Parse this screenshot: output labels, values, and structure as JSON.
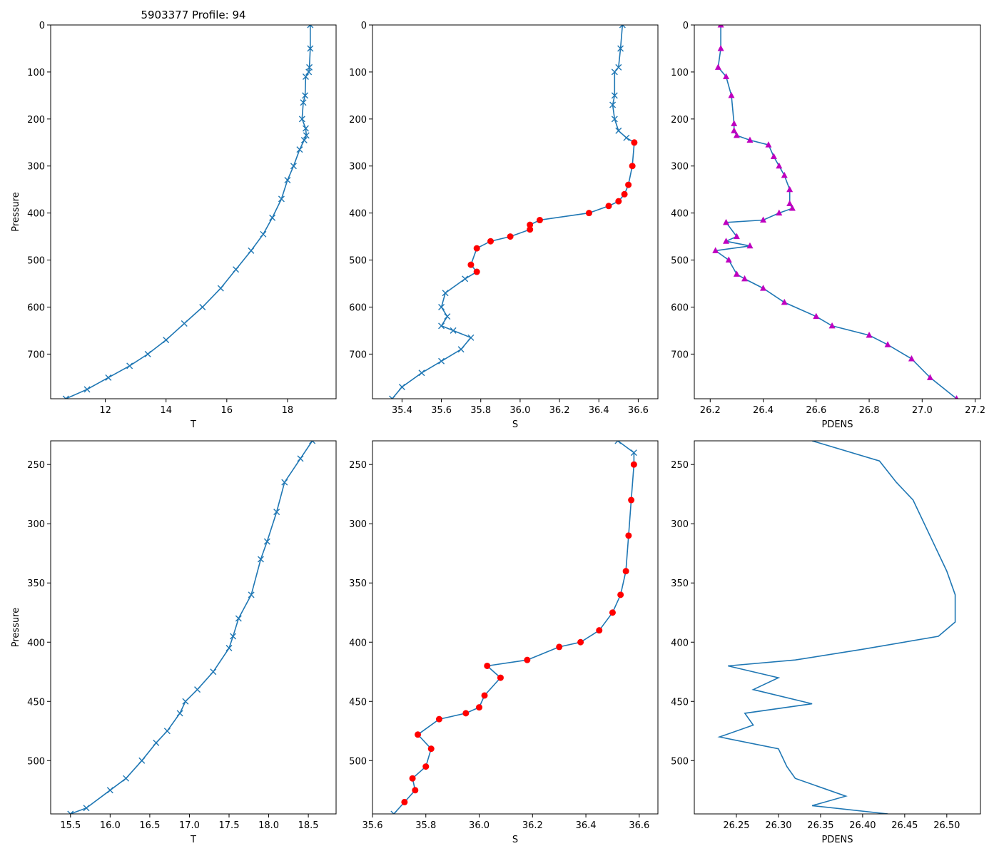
{
  "figure": {
    "title": "5903377 Profile: 94",
    "colors": {
      "line": "#1f77b4",
      "highlight": "#ff0000",
      "density_marker": "#bf00bf",
      "axis": "#000000"
    }
  },
  "chart_data": [
    {
      "type": "line",
      "panel": "top-left",
      "title": "5903377 Profile: 94",
      "xlabel": "T",
      "ylabel": "Pressure",
      "xlim": [
        10.2,
        19.6
      ],
      "ylim": [
        795,
        0
      ],
      "xticks": [
        12,
        14,
        16,
        18
      ],
      "yticks": [
        0,
        100,
        200,
        300,
        400,
        500,
        600,
        700
      ],
      "x": [
        18.75,
        18.75,
        18.72,
        18.7,
        18.6,
        18.58,
        18.52,
        18.48,
        18.6,
        18.62,
        18.55,
        18.4,
        18.2,
        18.0,
        17.8,
        17.5,
        17.2,
        16.8,
        16.3,
        15.8,
        15.2,
        14.6,
        14.0,
        13.4,
        12.8,
        12.1,
        11.4,
        10.7
      ],
      "y": [
        0,
        50,
        90,
        100,
        110,
        150,
        165,
        200,
        220,
        235,
        245,
        265,
        300,
        330,
        370,
        410,
        445,
        480,
        520,
        560,
        600,
        635,
        670,
        700,
        725,
        750,
        775,
        795
      ],
      "markers": "x"
    },
    {
      "type": "line",
      "panel": "top-middle",
      "xlabel": "S",
      "ylabel": "",
      "xlim": [
        35.25,
        36.7
      ],
      "ylim": [
        795,
        0
      ],
      "xticks": [
        35.4,
        35.6,
        35.8,
        36.0,
        36.2,
        36.4,
        36.6
      ],
      "yticks": [
        0,
        100,
        200,
        300,
        400,
        500,
        600,
        700
      ],
      "x": [
        36.52,
        36.51,
        36.5,
        36.48,
        36.48,
        36.47,
        36.48,
        36.5,
        36.54,
        36.58,
        36.57,
        36.55,
        36.53,
        36.5,
        36.45,
        36.35,
        36.1,
        36.05,
        36.05,
        35.95,
        35.85,
        35.78,
        35.75,
        35.78,
        35.72,
        35.62,
        35.6,
        35.63,
        35.6,
        35.66,
        35.75,
        35.7,
        35.6,
        35.5,
        35.4,
        35.35
      ],
      "y": [
        0,
        50,
        90,
        100,
        150,
        170,
        200,
        225,
        240,
        250,
        300,
        340,
        360,
        375,
        385,
        400,
        415,
        425,
        435,
        450,
        460,
        475,
        510,
        525,
        540,
        570,
        600,
        620,
        640,
        650,
        665,
        690,
        715,
        740,
        770,
        795
      ],
      "highlight_from_index": 9,
      "highlight_to_index": 23,
      "markers": "x"
    },
    {
      "type": "line",
      "panel": "top-right",
      "xlabel": "PDENS",
      "ylabel": "",
      "xlim": [
        26.14,
        27.22
      ],
      "ylim": [
        795,
        0
      ],
      "xticks": [
        26.2,
        26.4,
        26.6,
        26.8,
        27.0,
        27.2
      ],
      "yticks": [
        0,
        100,
        200,
        300,
        400,
        500,
        600,
        700
      ],
      "x": [
        26.24,
        26.24,
        26.23,
        26.26,
        26.28,
        26.29,
        26.29,
        26.3,
        26.35,
        26.42,
        26.44,
        26.46,
        26.48,
        26.5,
        26.5,
        26.51,
        26.46,
        26.4,
        26.26,
        26.3,
        26.26,
        26.35,
        26.22,
        26.27,
        26.3,
        26.33,
        26.4,
        26.48,
        26.6,
        26.66,
        26.8,
        26.87,
        26.96,
        27.03,
        27.13
      ],
      "y": [
        0,
        50,
        90,
        110,
        150,
        210,
        225,
        235,
        245,
        255,
        280,
        300,
        320,
        350,
        380,
        390,
        400,
        415,
        420,
        450,
        460,
        470,
        480,
        500,
        530,
        540,
        560,
        590,
        620,
        640,
        660,
        680,
        710,
        750,
        795
      ],
      "markers": "triangle"
    },
    {
      "type": "line",
      "panel": "bottom-left",
      "xlabel": "T",
      "ylabel": "Pressure",
      "xlim": [
        15.25,
        18.85
      ],
      "ylim": [
        545,
        230
      ],
      "xticks": [
        15.5,
        16.0,
        16.5,
        17.0,
        17.5,
        18.0,
        18.5
      ],
      "yticks": [
        250,
        300,
        350,
        400,
        450,
        500
      ],
      "x": [
        18.55,
        18.4,
        18.2,
        18.1,
        17.98,
        17.9,
        17.78,
        17.62,
        17.55,
        17.5,
        17.3,
        17.1,
        16.95,
        16.88,
        16.72,
        16.58,
        16.4,
        16.2,
        16.0,
        15.7,
        15.5
      ],
      "y": [
        230,
        245,
        265,
        290,
        315,
        330,
        360,
        380,
        395,
        405,
        425,
        440,
        450,
        460,
        475,
        485,
        500,
        515,
        525,
        540,
        545
      ],
      "markers": "x"
    },
    {
      "type": "line",
      "panel": "bottom-middle",
      "xlabel": "S",
      "ylabel": "",
      "xlim": [
        35.6,
        36.67
      ],
      "ylim": [
        545,
        230
      ],
      "xticks": [
        35.6,
        35.8,
        36.0,
        36.2,
        36.4,
        36.6
      ],
      "yticks": [
        250,
        300,
        350,
        400,
        450,
        500
      ],
      "x": [
        36.52,
        36.58,
        36.58,
        36.57,
        36.56,
        36.55,
        36.53,
        36.5,
        36.45,
        36.38,
        36.3,
        36.18,
        36.03,
        36.08,
        36.02,
        36.0,
        35.95,
        35.85,
        35.77,
        35.82,
        35.8,
        35.75,
        35.76,
        35.72,
        35.68
      ],
      "y": [
        230,
        240,
        250,
        280,
        310,
        340,
        360,
        375,
        390,
        400,
        404,
        415,
        420,
        430,
        445,
        455,
        460,
        465,
        478,
        490,
        505,
        515,
        525,
        535,
        545
      ],
      "highlight_from_index": 2,
      "highlight_to_index": 23,
      "markers": "x"
    },
    {
      "type": "line",
      "panel": "bottom-right",
      "xlabel": "PDENS",
      "ylabel": "",
      "xlim": [
        26.2,
        26.54
      ],
      "ylim": [
        545,
        230
      ],
      "xticks": [
        26.25,
        26.3,
        26.35,
        26.4,
        26.45,
        26.5
      ],
      "yticks": [
        250,
        300,
        350,
        400,
        450,
        500
      ],
      "x": [
        26.34,
        26.42,
        26.44,
        26.46,
        26.48,
        26.5,
        26.51,
        26.51,
        26.49,
        26.4,
        26.32,
        26.24,
        26.3,
        26.27,
        26.34,
        26.26,
        26.27,
        26.23,
        26.3,
        26.31,
        26.32,
        26.38,
        26.34,
        26.43
      ],
      "y": [
        230,
        247,
        265,
        280,
        310,
        340,
        360,
        383,
        395,
        406,
        415,
        420,
        430,
        440,
        452,
        460,
        470,
        480,
        490,
        505,
        515,
        530,
        538,
        545
      ],
      "markers": "none"
    }
  ]
}
